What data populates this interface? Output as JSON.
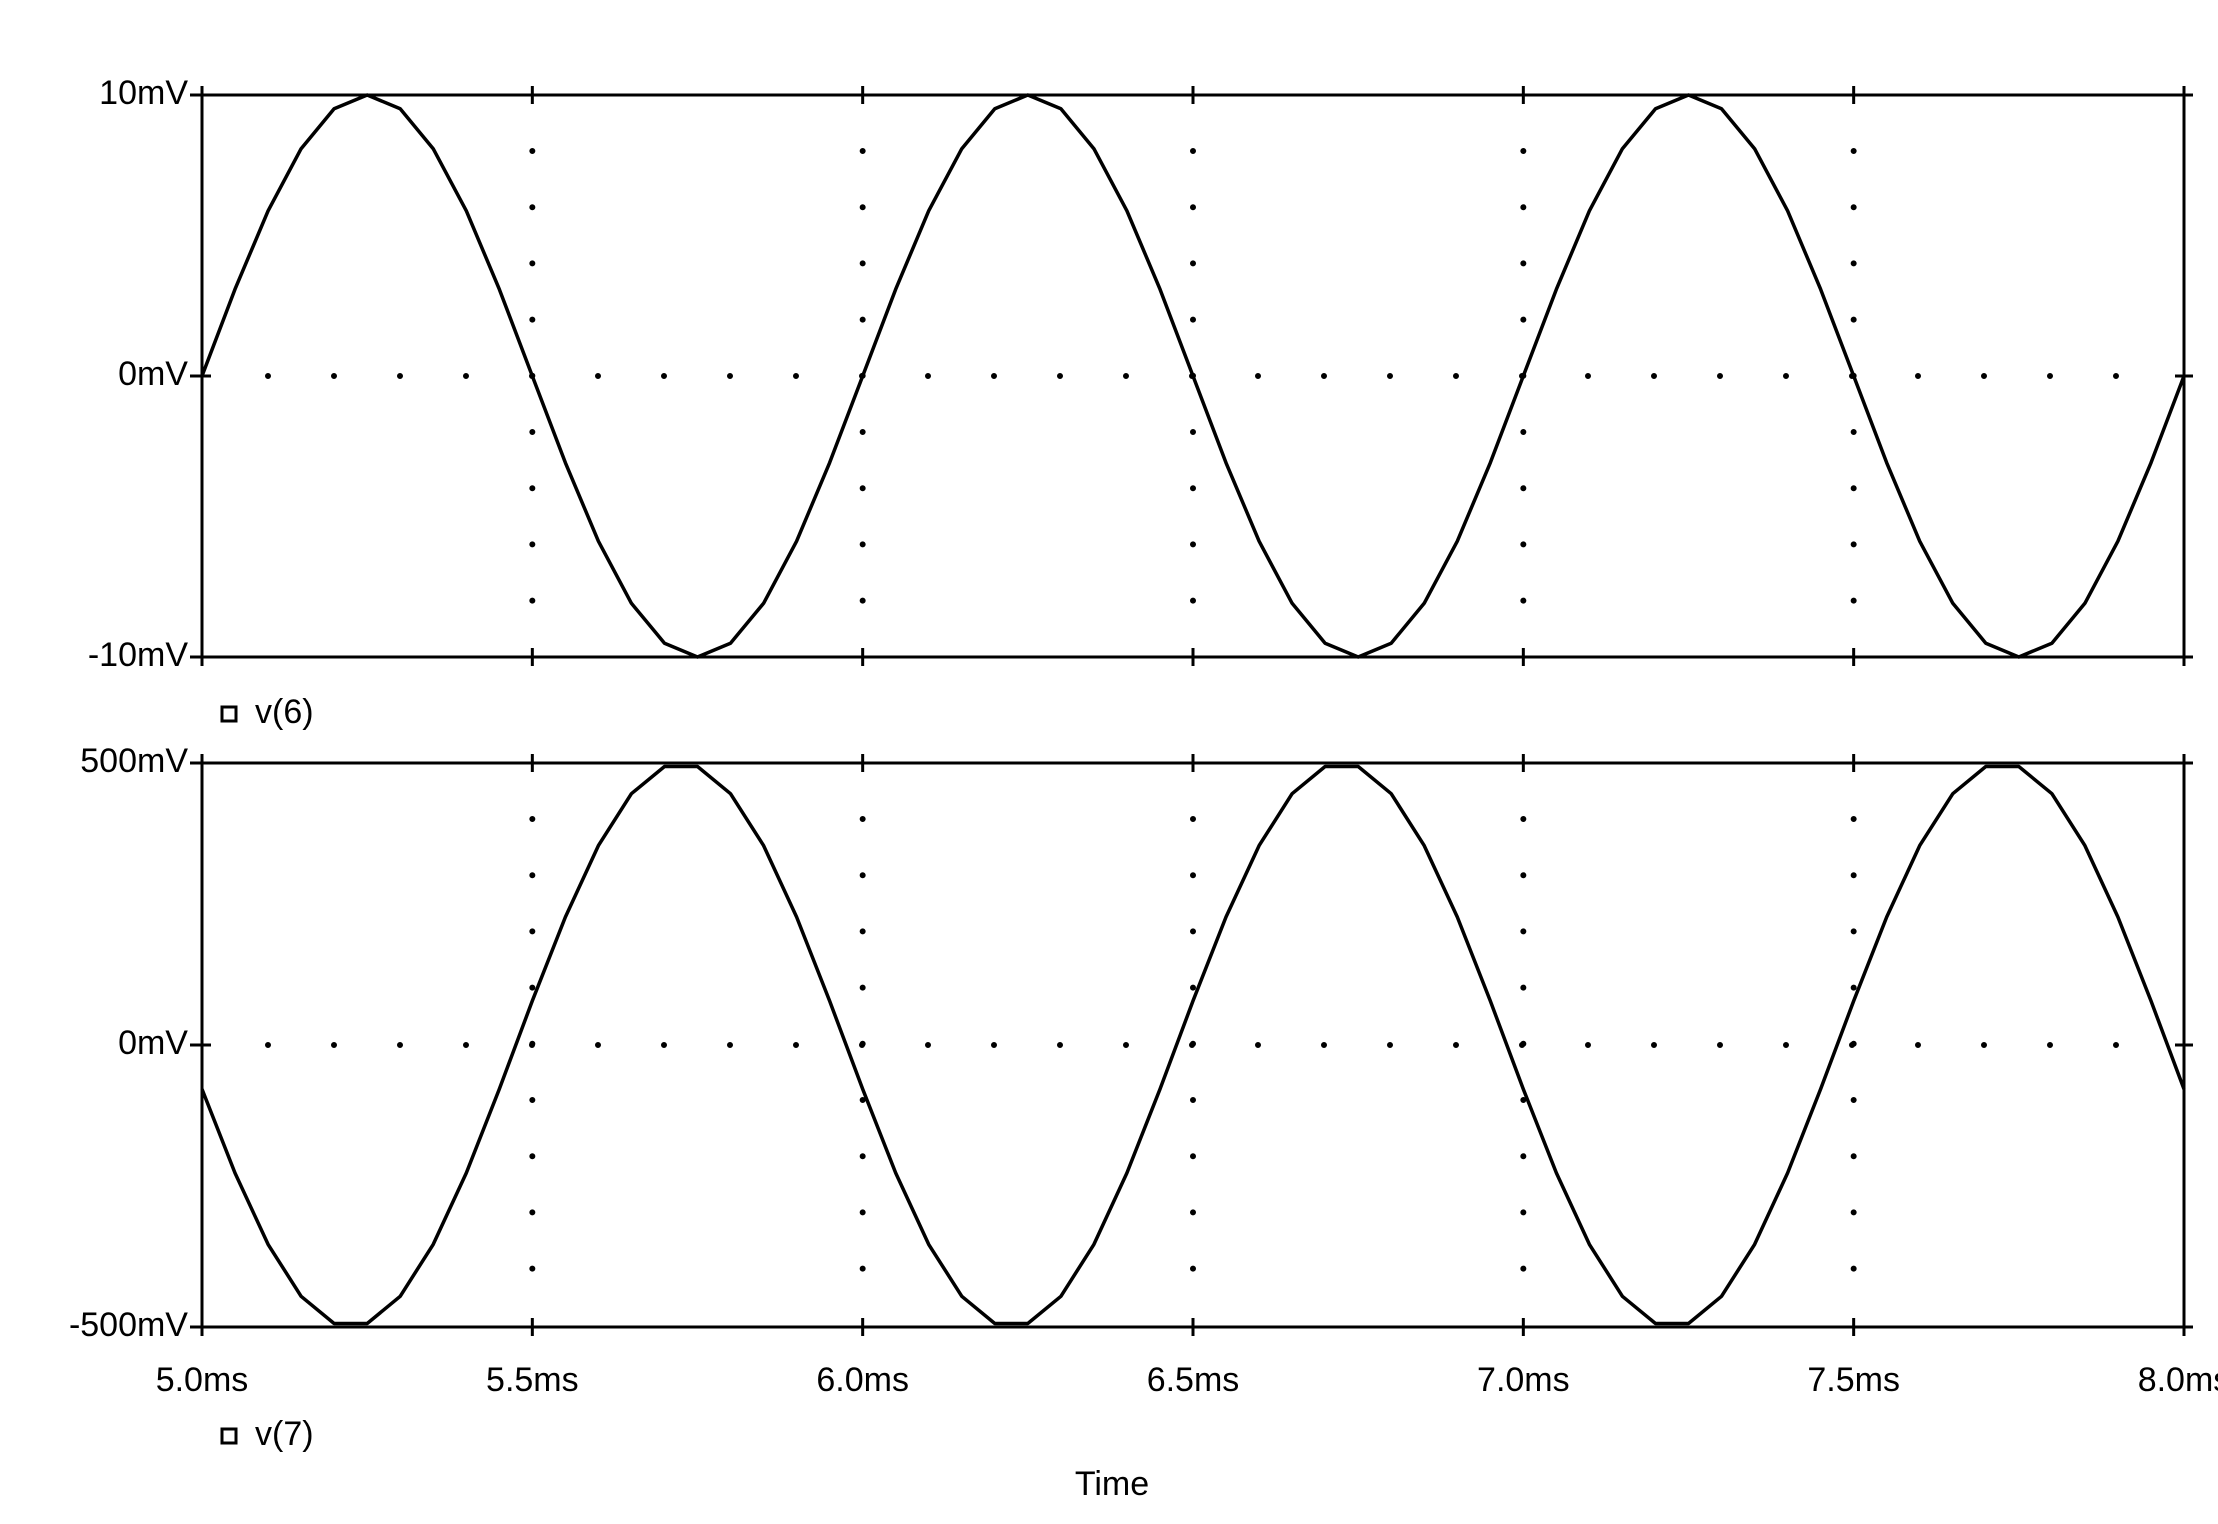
{
  "chart_data": [
    {
      "type": "line",
      "x": [
        5.0,
        5.05,
        5.1,
        5.15,
        5.2,
        5.25,
        5.3,
        5.35,
        5.4,
        5.45,
        5.5,
        5.55,
        5.6,
        5.65,
        5.7,
        5.75,
        5.8,
        5.85,
        5.9,
        5.95,
        6.0,
        6.05,
        6.1,
        6.15,
        6.2,
        6.25,
        6.3,
        6.35,
        6.4,
        6.45,
        6.5,
        6.55,
        6.6,
        6.65,
        6.7,
        6.75,
        6.8,
        6.85,
        6.9,
        6.95,
        7.0,
        7.05,
        7.1,
        7.15,
        7.2,
        7.25,
        7.3,
        7.35,
        7.4,
        7.45,
        7.5,
        7.55,
        7.6,
        7.65,
        7.7,
        7.75,
        7.8,
        7.85,
        7.9,
        7.95,
        8.0
      ],
      "series": [
        {
          "name": "v(6)",
          "color": "#000000",
          "values": [
            0,
            3.09,
            5.88,
            8.09,
            9.51,
            10,
            9.51,
            8.09,
            5.88,
            3.09,
            0,
            -3.09,
            -5.88,
            -8.09,
            -9.51,
            -10,
            -9.51,
            -8.09,
            -5.88,
            -3.09,
            0,
            3.09,
            5.88,
            8.09,
            9.51,
            10,
            9.51,
            8.09,
            5.88,
            3.09,
            0,
            -3.09,
            -5.88,
            -8.09,
            -9.51,
            -10,
            -9.51,
            -8.09,
            -5.88,
            -3.09,
            0,
            3.09,
            5.88,
            8.09,
            9.51,
            10,
            9.51,
            8.09,
            5.88,
            3.09,
            0,
            -3.09,
            -5.88,
            -8.09,
            -9.51,
            -10,
            -9.51,
            -8.09,
            -5.88,
            -3.09,
            0
          ]
        }
      ],
      "xlim": [
        5.0,
        8.0
      ],
      "ylim": [
        -10,
        10
      ],
      "yticks": [
        {
          "value": 10,
          "label": "10mV"
        },
        {
          "value": 0,
          "label": "0mV"
        },
        {
          "value": -10,
          "label": "-10mV"
        }
      ],
      "grid": true
    },
    {
      "type": "line",
      "x": [
        5.0,
        5.05,
        5.1,
        5.15,
        5.2,
        5.25,
        5.3,
        5.35,
        5.4,
        5.45,
        5.5,
        5.55,
        5.6,
        5.65,
        5.7,
        5.75,
        5.8,
        5.85,
        5.9,
        5.95,
        6.0,
        6.05,
        6.1,
        6.15,
        6.2,
        6.25,
        6.3,
        6.35,
        6.4,
        6.45,
        6.5,
        6.55,
        6.6,
        6.65,
        6.7,
        6.75,
        6.8,
        6.85,
        6.9,
        6.95,
        7.0,
        7.05,
        7.1,
        7.15,
        7.2,
        7.25,
        7.3,
        7.35,
        7.4,
        7.45,
        7.5,
        7.55,
        7.6,
        7.65,
        7.7,
        7.75,
        7.8,
        7.85,
        7.9,
        7.95,
        8.0
      ],
      "series": [
        {
          "name": "v(7)",
          "color": "#000000",
          "values": [
            -78.2,
            -227,
            -353.6,
            -445.5,
            -493.8,
            -493.8,
            -445.5,
            -353.6,
            -227,
            -78.2,
            78.2,
            227,
            353.6,
            445.5,
            493.8,
            493.8,
            445.5,
            353.6,
            227,
            78.2,
            -78.2,
            -227,
            -353.6,
            -445.5,
            -493.8,
            -493.8,
            -445.5,
            -353.6,
            -227,
            -78.2,
            78.2,
            227,
            353.6,
            445.5,
            493.8,
            493.8,
            445.5,
            353.6,
            227,
            78.2,
            -78.2,
            -227,
            -353.6,
            -445.5,
            -493.8,
            -493.8,
            -445.5,
            -353.6,
            -227,
            -78.2,
            78.2,
            227,
            353.6,
            445.5,
            493.8,
            493.8,
            445.5,
            353.6,
            227,
            78.2,
            -78.2
          ]
        }
      ],
      "xlim": [
        5.0,
        8.0
      ],
      "xticks": [
        {
          "value": 5.0,
          "label": "5.0ms"
        },
        {
          "value": 5.5,
          "label": "5.5ms"
        },
        {
          "value": 6.0,
          "label": "6.0ms"
        },
        {
          "value": 6.5,
          "label": "6.5ms"
        },
        {
          "value": 7.0,
          "label": "7.0ms"
        },
        {
          "value": 7.5,
          "label": "7.5ms"
        },
        {
          "value": 8.0,
          "label": "8.0ms"
        }
      ],
      "ylim": [
        -500,
        500
      ],
      "yticks": [
        {
          "value": 500,
          "label": "500mV"
        },
        {
          "value": 0,
          "label": "0mV"
        },
        {
          "value": -500,
          "label": "-500mV"
        }
      ],
      "xlabel": "Time",
      "grid": true
    }
  ]
}
